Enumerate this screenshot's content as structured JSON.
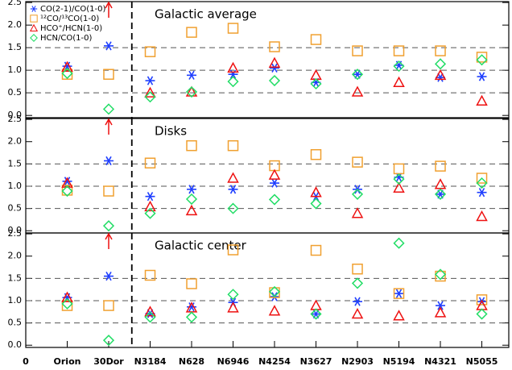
{
  "chart_data": [
    {
      "type": "scatter",
      "annotation": "Galactic average",
      "x": [
        1,
        2,
        3,
        4,
        5,
        6,
        7,
        8,
        9,
        10,
        11
      ],
      "xlim": [
        0,
        11.65
      ],
      "ylim": [
        -0.05,
        2.52
      ],
      "yticks": [
        {
          "value": 0,
          "label": "0.0"
        },
        0.5,
        {
          "value": 1,
          "label": "1.0"
        },
        1.5,
        {
          "value": 2,
          "label": "2.0"
        },
        2.5
      ],
      "grid": true,
      "legend": "upper left",
      "series": [
        {
          "name": "CO(2-1)/CO(1-0)",
          "color": "#1f3fff",
          "marker": "asterisk",
          "values": [
            1.09,
            1.54,
            0.77,
            0.89,
            0.91,
            1.05,
            0.73,
            0.91,
            1.11,
            0.84,
            0.86
          ]
        },
        {
          "name": "¹²CO/¹³CO(1-0)",
          "color": "#f0a030",
          "marker": "square",
          "values": [
            0.91,
            0.91,
            1.41,
            1.84,
            1.93,
            1.52,
            1.68,
            1.43,
            1.43,
            1.43,
            1.29
          ]
        },
        {
          "name": "HCO⁺/HCN(1-0)",
          "color": "#ee1111",
          "marker": "triangle",
          "values": [
            1.07,
            null,
            0.5,
            0.52,
            1.05,
            1.16,
            0.89,
            0.52,
            0.73,
            0.89,
            0.32
          ]
        },
        {
          "name": "HCN/CO(1-0)",
          "color": "#22dd66",
          "marker": "diamond",
          "values": [
            0.93,
            0.14,
            0.41,
            0.52,
            0.75,
            0.77,
            0.7,
            0.91,
            1.09,
            1.14,
            1.23
          ]
        }
      ]
    },
    {
      "type": "scatter",
      "annotation": "Disks",
      "x": [
        1,
        2,
        3,
        4,
        5,
        6,
        7,
        8,
        9,
        10,
        11
      ],
      "xlim": [
        0,
        11.65
      ],
      "ylim": [
        -0.05,
        2.52
      ],
      "yticks": [
        {
          "value": 0,
          "label": "0.0"
        },
        0.5,
        {
          "value": 1,
          "label": "1.0"
        },
        1.5,
        {
          "value": 2,
          "label": "2.0"
        },
        2.5
      ],
      "grid": true,
      "series": [
        {
          "color": "#1f3fff",
          "marker": "asterisk",
          "values": [
            1.11,
            1.57,
            0.77,
            0.93,
            0.93,
            1.07,
            0.77,
            0.93,
            1.2,
            0.82,
            0.86
          ]
        },
        {
          "color": "#f0a030",
          "marker": "square",
          "values": [
            0.91,
            0.89,
            1.52,
            1.91,
            1.91,
            1.46,
            1.71,
            1.54,
            1.39,
            1.45,
            1.18
          ]
        },
        {
          "color": "#ee1111",
          "marker": "triangle",
          "values": [
            1.07,
            null,
            0.54,
            0.45,
            1.18,
            1.25,
            0.86,
            0.39,
            0.96,
            1.04,
            0.32
          ]
        },
        {
          "color": "#22dd66",
          "marker": "diamond",
          "values": [
            0.89,
            0.11,
            0.39,
            0.71,
            0.5,
            0.7,
            0.61,
            0.82,
            1.16,
            0.82,
            1.07
          ]
        }
      ]
    },
    {
      "type": "scatter",
      "annotation": "Galactic center",
      "x": [
        1,
        2,
        3,
        4,
        5,
        6,
        7,
        8,
        9,
        10,
        11
      ],
      "xlim": [
        0,
        11.65
      ],
      "ylim": [
        -0.05,
        2.52
      ],
      "xticks": [
        0,
        {
          "value": 1,
          "label": "Orion"
        },
        {
          "value": 2,
          "label": "30Dor"
        },
        {
          "value": 3,
          "label": "N3184"
        },
        {
          "value": 4,
          "label": "N628"
        },
        {
          "value": 5,
          "label": "N6946"
        },
        {
          "value": 6,
          "label": "N4254"
        },
        {
          "value": 7,
          "label": "N3627"
        },
        {
          "value": 8,
          "label": "N2903"
        },
        {
          "value": 9,
          "label": "N5194"
        },
        {
          "value": 10,
          "label": "N4321"
        },
        {
          "value": 11,
          "label": "N5055"
        }
      ],
      "yticks": [
        {
          "value": 0,
          "label": "0.0"
        },
        0.5,
        {
          "value": 1,
          "label": "1.0"
        },
        1.5,
        {
          "value": 2,
          "label": "2.0"
        },
        2.5
      ],
      "grid": true,
      "series": [
        {
          "color": "#1f3fff",
          "marker": "asterisk",
          "values": [
            1.07,
            1.55,
            0.71,
            0.86,
            0.96,
            1.09,
            0.7,
            0.98,
            1.16,
            0.89,
            0.98
          ]
        },
        {
          "color": "#f0a030",
          "marker": "square",
          "values": [
            0.89,
            0.89,
            1.57,
            1.38,
            2.14,
            1.18,
            2.13,
            1.71,
            1.16,
            1.55,
            1.02
          ]
        },
        {
          "color": "#ee1111",
          "marker": "triangle",
          "values": [
            1.07,
            null,
            0.75,
            0.84,
            0.84,
            0.77,
            0.89,
            0.7,
            0.66,
            0.73,
            0.89
          ]
        },
        {
          "color": "#22dd66",
          "marker": "diamond",
          "values": [
            0.93,
            0.11,
            0.63,
            0.63,
            1.14,
            1.2,
            0.7,
            1.39,
            2.29,
            1.59,
            0.7
          ]
        }
      ]
    }
  ]
}
